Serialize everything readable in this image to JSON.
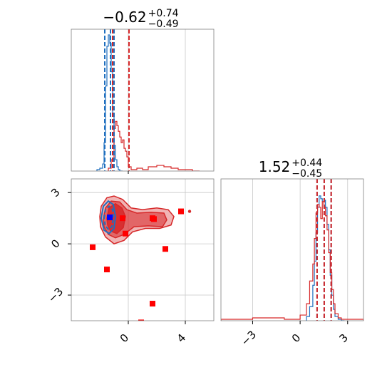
{
  "colors": {
    "blue": "#1f6fbf",
    "red": "#d62728",
    "marker_red": "#ff0000",
    "marker_blue": "#0000ff",
    "grid": "#c8c8c8",
    "frame": "#7f7f7f"
  },
  "chart_data": {
    "type": "corner",
    "panels": [
      {
        "type": "histogram",
        "position": "top-left",
        "title": {
          "value": "−0.62",
          "upper": "+0.74",
          "lower": "−0.49"
        },
        "xlim": [
          -4,
          6
        ],
        "ylim": [
          0,
          100
        ],
        "grid_x": [
          0,
          4
        ],
        "series": [
          {
            "name": "",
            "color": "blue",
            "edges": [
              -2.2,
              -2.0,
              -1.8,
              -1.7,
              -1.6,
              -1.5,
              -1.4,
              -1.3,
              -1.2,
              -1.1,
              -1.0,
              -0.9,
              -0.8,
              -0.7,
              -0.6,
              -0.5,
              -0.4
            ],
            "counts": [
              1,
              2,
              5,
              20,
              60,
              88,
              96,
              90,
              70,
              40,
              18,
              8,
              3,
              1,
              0,
              0
            ]
          },
          {
            "name": "",
            "color": "red",
            "edges": [
              -1.4,
              -1.2,
              -1.0,
              -0.9,
              -0.8,
              -0.7,
              -0.6,
              -0.5,
              -0.4,
              -0.3,
              -0.2,
              -0.1,
              0.0,
              0.2,
              0.6,
              1.0,
              1.4,
              2.0,
              2.5,
              3.0,
              3.5,
              4.0,
              4.5,
              5.0
            ],
            "counts": [
              2,
              8,
              30,
              35,
              32,
              28,
              24,
              20,
              22,
              16,
              14,
              10,
              3,
              1,
              2,
              1,
              3,
              4,
              3,
              2,
              1,
              1,
              0
            ]
          }
        ],
        "quantile_lines": [
          {
            "color": "blue",
            "values": [
              -1.65,
              -1.25,
              -1.0
            ]
          },
          {
            "color": "red",
            "values": [
              -1.1,
              -1.1,
              0.05
            ]
          }
        ]
      },
      {
        "type": "contour",
        "position": "bottom-left",
        "xlim": [
          -4,
          6
        ],
        "ylim": [
          -4.5,
          3.8
        ],
        "xticks": [
          0,
          4
        ],
        "yticks": [
          -3,
          0,
          3
        ],
        "xtick_labels": [
          "0",
          "4"
        ],
        "ytick_labels": [
          "−3",
          "0",
          "3"
        ],
        "grid_x": [
          0,
          4
        ],
        "grid_y": [
          -3,
          0,
          3
        ],
        "red_contours": [
          {
            "level": 1,
            "points": [
              [
                -2.0,
                1.6
              ],
              [
                -1.9,
                2.2
              ],
              [
                -1.5,
                2.7
              ],
              [
                -1.0,
                2.8
              ],
              [
                -0.4,
                2.6
              ],
              [
                0.2,
                2.1
              ],
              [
                1.0,
                2.0
              ],
              [
                2.0,
                2.1
              ],
              [
                2.8,
                2.0
              ],
              [
                3.2,
                1.6
              ],
              [
                3.0,
                1.1
              ],
              [
                2.2,
                0.9
              ],
              [
                1.2,
                0.9
              ],
              [
                0.3,
                0.7
              ],
              [
                -0.3,
                0.2
              ],
              [
                -1.0,
                0.0
              ],
              [
                -1.6,
                0.4
              ],
              [
                -1.95,
                1.0
              ]
            ]
          },
          {
            "level": 2,
            "points": [
              [
                -1.75,
                1.5
              ],
              [
                -1.6,
                2.1
              ],
              [
                -1.2,
                2.5
              ],
              [
                -0.6,
                2.45
              ],
              [
                -0.1,
                2.0
              ],
              [
                0.6,
                1.8
              ],
              [
                1.6,
                1.85
              ],
              [
                2.5,
                1.8
              ],
              [
                2.7,
                1.4
              ],
              [
                2.4,
                1.0
              ],
              [
                1.4,
                1.05
              ],
              [
                0.4,
                1.0
              ],
              [
                -0.3,
                0.55
              ],
              [
                -0.9,
                0.35
              ],
              [
                -1.4,
                0.55
              ],
              [
                -1.7,
                1.0
              ]
            ]
          },
          {
            "level": 3,
            "points": [
              [
                -1.5,
                1.5
              ],
              [
                -1.35,
                2.1
              ],
              [
                -0.9,
                2.35
              ],
              [
                -0.45,
                2.1
              ],
              [
                -0.2,
                1.6
              ],
              [
                -0.35,
                0.95
              ],
              [
                -0.8,
                0.6
              ],
              [
                -1.25,
                0.75
              ],
              [
                -1.45,
                1.1
              ]
            ]
          }
        ],
        "blue_contours": [
          {
            "level": 1,
            "points": [
              [
                -1.9,
                1.5
              ],
              [
                -1.75,
                2.2
              ],
              [
                -1.4,
                2.5
              ],
              [
                -1.05,
                2.3
              ],
              [
                -0.9,
                1.6
              ],
              [
                -1.0,
                0.9
              ],
              [
                -1.35,
                0.6
              ],
              [
                -1.7,
                0.8
              ]
            ]
          },
          {
            "level": 2,
            "points": [
              [
                -1.7,
                1.5
              ],
              [
                -1.6,
                2.0
              ],
              [
                -1.35,
                2.2
              ],
              [
                -1.1,
                2.0
              ],
              [
                -1.05,
                1.5
              ],
              [
                -1.15,
                1.0
              ],
              [
                -1.4,
                0.85
              ],
              [
                -1.6,
                1.05
              ]
            ]
          }
        ],
        "markers_red": [
          [
            -2.5,
            -0.2
          ],
          [
            -1.5,
            -1.5
          ],
          [
            -0.4,
            1.5
          ],
          [
            -0.2,
            0.6
          ],
          [
            1.7,
            1.5
          ],
          [
            1.8,
            1.45
          ],
          [
            2.6,
            -0.3
          ],
          [
            3.7,
            1.9
          ],
          [
            1.7,
            -3.5
          ],
          [
            0.9,
            -4.6
          ]
        ],
        "markers_blue": [
          [
            -1.3,
            1.55
          ]
        ],
        "scatter_red_small": [
          [
            4.3,
            1.9
          ]
        ]
      },
      {
        "type": "histogram",
        "position": "bottom-right",
        "title": {
          "value": "1.52",
          "upper": "+0.44",
          "lower": "−0.45"
        },
        "xlim": [
          -5,
          4
        ],
        "ylim": [
          0,
          100
        ],
        "xticks": [
          -3,
          0,
          3
        ],
        "xtick_labels": [
          "−3",
          "0",
          "3"
        ],
        "grid_x": [
          -3,
          0,
          3
        ],
        "series": [
          {
            "name": "",
            "color": "blue",
            "edges": [
              0.4,
              0.6,
              0.8,
              0.9,
              1.0,
              1.1,
              1.2,
              1.3,
              1.4,
              1.5,
              1.6,
              1.7,
              1.8,
              1.9,
              2.0,
              2.1,
              2.2,
              2.4,
              2.6,
              2.8
            ],
            "counts": [
              3,
              10,
              25,
              42,
              62,
              80,
              88,
              86,
              84,
              85,
              80,
              68,
              50,
              32,
              18,
              8,
              3,
              1,
              0
            ]
          },
          {
            "name": "",
            "color": "red",
            "edges": [
              -5.0,
              -3.0,
              -1.0,
              0.0,
              0.4,
              0.6,
              0.8,
              0.9,
              1.0,
              1.1,
              1.2,
              1.3,
              1.4,
              1.5,
              1.6,
              1.7,
              1.8,
              1.9,
              2.0,
              2.1,
              2.2,
              2.4,
              2.6,
              3.0,
              4.0
            ],
            "counts": [
              1,
              2,
              1,
              4,
              12,
              28,
              40,
              58,
              76,
              82,
              80,
              72,
              84,
              80,
              74,
              64,
              48,
              34,
              22,
              12,
              5,
              2,
              1,
              1
            ]
          }
        ],
        "quantile_lines": [
          {
            "color": "blue",
            "values": [
              1.07,
              1.52,
              1.96
            ]
          },
          {
            "color": "red",
            "values": [
              1.07,
              1.52,
              1.96
            ]
          }
        ]
      }
    ]
  }
}
